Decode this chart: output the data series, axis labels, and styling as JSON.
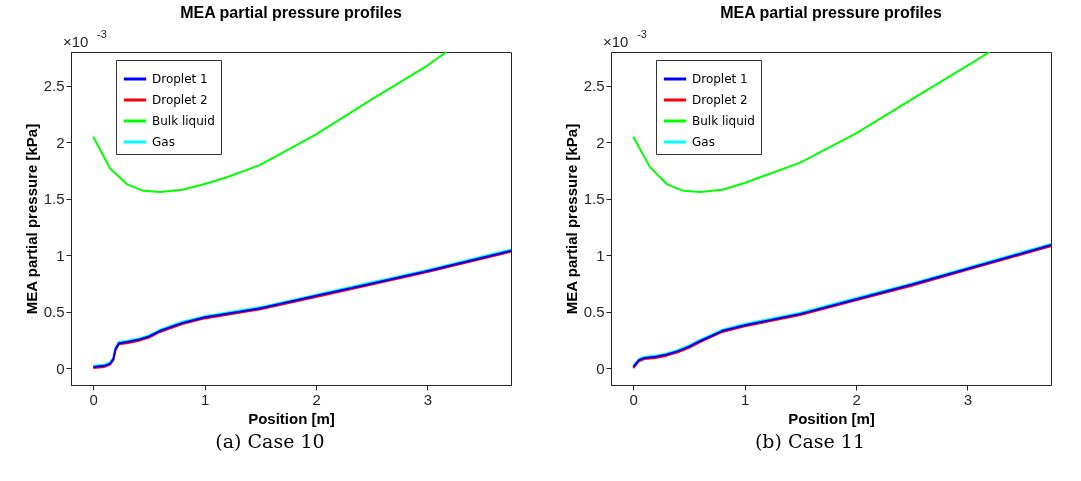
{
  "chart_data": [
    {
      "type": "line",
      "title": "MEA partial pressure profiles",
      "xlabel": "Position [m]",
      "ylabel": "MEA partial pressure [kPa]",
      "annotations": [
        "×10$^{-3}$",
        "(a) Case 10"
      ],
      "xlim": [
        -0.2,
        3.75
      ],
      "xticks": [
        0,
        1,
        2,
        3
      ],
      "ylim": [
        -0.15,
        2.8
      ],
      "yticks": [
        0,
        0.5,
        1,
        1.5,
        2,
        2.5
      ],
      "grid": false,
      "legend": "top left",
      "line_style": "solid",
      "marker": "none",
      "series": [
        {
          "name": "Droplet 1",
          "color": "#0000ff",
          "x": [
            0,
            0.1,
            0.15,
            0.18,
            0.2,
            0.23,
            0.3,
            0.4,
            0.5,
            0.6,
            0.8,
            1.0,
            1.5,
            2.0,
            2.5,
            3.0,
            3.5,
            3.75
          ],
          "values": [
            0.01,
            0.02,
            0.04,
            0.08,
            0.17,
            0.22,
            0.23,
            0.25,
            0.28,
            0.33,
            0.4,
            0.45,
            0.53,
            0.64,
            0.75,
            0.86,
            0.98,
            1.04
          ]
        },
        {
          "name": "Droplet 2",
          "color": "#ff0000",
          "x": [
            0,
            0.1,
            0.15,
            0.18,
            0.2,
            0.23,
            0.3,
            0.4,
            0.5,
            0.6,
            0.8,
            1.0,
            1.5,
            2.0,
            2.5,
            3.0,
            3.5,
            3.75
          ],
          "values": [
            0,
            0.01,
            0.03,
            0.07,
            0.16,
            0.21,
            0.22,
            0.24,
            0.27,
            0.32,
            0.39,
            0.44,
            0.52,
            0.63,
            0.74,
            0.85,
            0.97,
            1.03
          ]
        },
        {
          "name": "Bulk liquid",
          "color": "#00ff00",
          "x": [
            0,
            0.15,
            0.3,
            0.45,
            0.6,
            0.8,
            1.0,
            1.2,
            1.5,
            2.0,
            2.5,
            3.0,
            3.17
          ],
          "values": [
            2.05,
            1.77,
            1.63,
            1.57,
            1.56,
            1.58,
            1.63,
            1.69,
            1.8,
            2.07,
            2.38,
            2.68,
            2.8
          ]
        },
        {
          "name": "Gas",
          "color": "#00ffff",
          "x": [
            0,
            0.1,
            0.15,
            0.18,
            0.2,
            0.23,
            0.3,
            0.4,
            0.5,
            0.6,
            0.8,
            1.0,
            1.5,
            2.0,
            2.5,
            3.0,
            3.5,
            3.75
          ],
          "values": [
            0.02,
            0.03,
            0.05,
            0.09,
            0.18,
            0.23,
            0.24,
            0.26,
            0.29,
            0.34,
            0.41,
            0.46,
            0.54,
            0.65,
            0.76,
            0.87,
            0.99,
            1.05
          ]
        }
      ]
    },
    {
      "type": "line",
      "title": "MEA partial pressure profiles",
      "xlabel": "Position [m]",
      "ylabel": "MEA partial pressure [kPa]",
      "annotations": [
        "×10$^{-3}$",
        "(b) Case 11"
      ],
      "xlim": [
        -0.2,
        3.75
      ],
      "xticks": [
        0,
        1,
        2,
        3
      ],
      "ylim": [
        -0.15,
        2.8
      ],
      "yticks": [
        0,
        0.5,
        1,
        1.5,
        2,
        2.5
      ],
      "grid": false,
      "legend": "top left",
      "line_style": "solid",
      "marker": "none",
      "series": [
        {
          "name": "Droplet 1",
          "color": "#0000ff",
          "x": [
            0,
            0.05,
            0.1,
            0.2,
            0.3,
            0.4,
            0.5,
            0.6,
            0.8,
            1.0,
            1.5,
            2.0,
            2.5,
            3.0,
            3.5,
            3.75
          ],
          "values": [
            0.01,
            0.07,
            0.09,
            0.1,
            0.12,
            0.15,
            0.19,
            0.24,
            0.33,
            0.38,
            0.48,
            0.61,
            0.74,
            0.88,
            1.02,
            1.09
          ]
        },
        {
          "name": "Droplet 2",
          "color": "#ff0000",
          "x": [
            0,
            0.05,
            0.1,
            0.2,
            0.3,
            0.4,
            0.5,
            0.6,
            0.8,
            1.0,
            1.5,
            2.0,
            2.5,
            3.0,
            3.5,
            3.75
          ],
          "values": [
            0,
            0.06,
            0.08,
            0.09,
            0.11,
            0.14,
            0.18,
            0.23,
            0.32,
            0.37,
            0.47,
            0.6,
            0.73,
            0.87,
            1.01,
            1.08
          ]
        },
        {
          "name": "Bulk liquid",
          "color": "#00ff00",
          "x": [
            0,
            0.15,
            0.3,
            0.45,
            0.6,
            0.8,
            1.0,
            1.5,
            2.0,
            2.5,
            3.0,
            3.2
          ],
          "values": [
            2.05,
            1.78,
            1.63,
            1.57,
            1.56,
            1.58,
            1.64,
            1.82,
            2.08,
            2.38,
            2.68,
            2.8
          ]
        },
        {
          "name": "Gas",
          "color": "#00ffff",
          "x": [
            0,
            0.05,
            0.1,
            0.2,
            0.3,
            0.4,
            0.5,
            0.6,
            0.8,
            1.0,
            1.5,
            2.0,
            2.5,
            3.0,
            3.5,
            3.75
          ],
          "values": [
            0.02,
            0.08,
            0.1,
            0.11,
            0.13,
            0.16,
            0.2,
            0.25,
            0.34,
            0.39,
            0.49,
            0.62,
            0.75,
            0.89,
            1.03,
            1.1
          ]
        }
      ]
    }
  ]
}
